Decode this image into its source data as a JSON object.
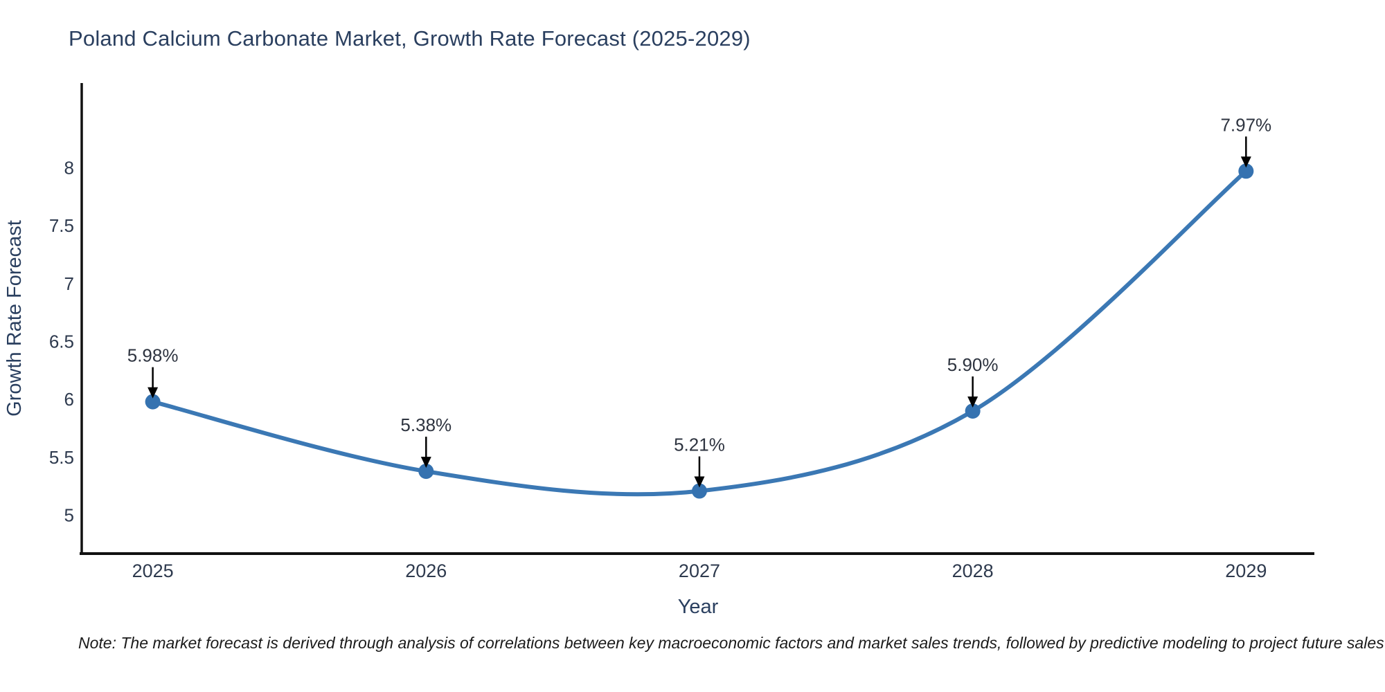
{
  "page": {
    "title": "Poland Calcium Carbonate Market, Growth Rate Forecast (2025-2029)",
    "note": "Note: The market forecast is derived through analysis of correlations between key macroeconomic factors and market sales trends, followed by predictive modeling to project future sales"
  },
  "chart_data": {
    "type": "line",
    "title": "Poland Calcium Carbonate Market, Growth Rate Forecast (2025-2029)",
    "xlabel": "Year",
    "ylabel": "Growth Rate Forecast",
    "x": [
      2025,
      2026,
      2027,
      2028,
      2029
    ],
    "series": [
      {
        "name": "Growth Rate Forecast",
        "values": [
          5.98,
          5.38,
          5.21,
          5.9,
          7.97
        ]
      }
    ],
    "point_labels": [
      "5.98%",
      "5.38%",
      "5.21%",
      "5.90%",
      "7.97%"
    ],
    "yticks": [
      5,
      5.5,
      6,
      6.5,
      7,
      7.5,
      8
    ],
    "xticks": [
      2025,
      2026,
      2027,
      2028,
      2029
    ],
    "ylim": [
      4.67,
      8.73
    ],
    "xlim": [
      2024.74,
      2029.25
    ],
    "grid": false,
    "legend": "none",
    "line_shape": "spline",
    "marker": "circle",
    "colors": {
      "line": "#3b78b4",
      "marker": "#3572b0",
      "axis": "#111111",
      "tick_text": "#2e3a4e",
      "label_text": "#2a3f5f",
      "annotation_text": "#2e3440",
      "annotation_arrow": "#000000",
      "background": "#ffffff"
    }
  }
}
